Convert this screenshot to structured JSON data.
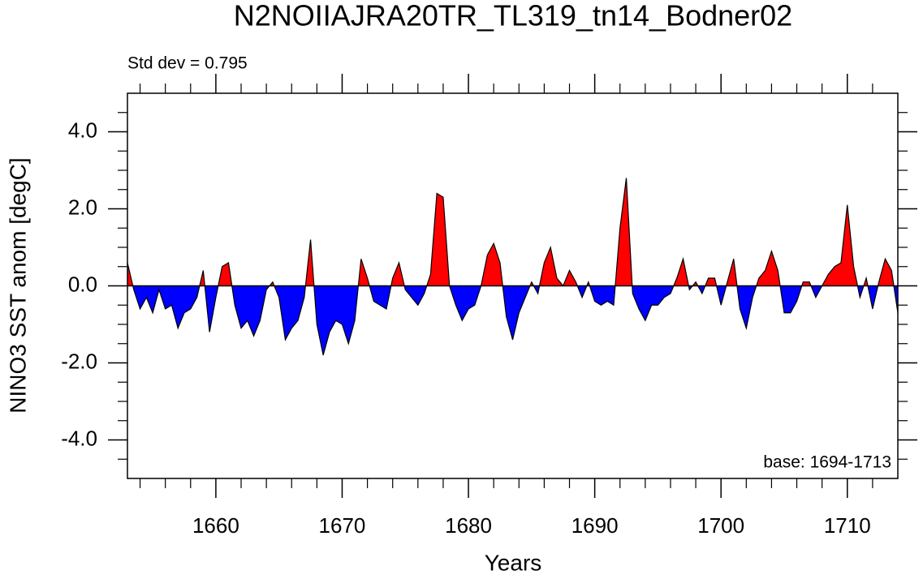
{
  "chart_data": {
    "type": "area",
    "title": "N2NOIIAJRA20TR_TL319_tn14_Bodner02",
    "annotation_left": "Std dev = 0.795",
    "annotation_right": "base: 1694-1713",
    "xlabel": "Years",
    "ylabel": "NINO3 SST anom [degC]",
    "above_color": "#ff0000",
    "below_color": "#0000ff",
    "line_color": "#000000",
    "xlim": [
      1653,
      1714
    ],
    "ylim": [
      -5,
      5
    ],
    "xticks": [
      1660,
      1670,
      1680,
      1690,
      1700,
      1710
    ],
    "xminorticks": [
      1654,
      1656,
      1658,
      1662,
      1664,
      1666,
      1668,
      1672,
      1674,
      1676,
      1678,
      1682,
      1684,
      1686,
      1688,
      1692,
      1694,
      1696,
      1698,
      1702,
      1704,
      1706,
      1708,
      1712
    ],
    "yticks": [
      {
        "value": -4,
        "label": "-4.0"
      },
      {
        "value": -2,
        "label": "-2.0"
      },
      {
        "value": 0,
        "label": "0.0"
      },
      {
        "value": 2,
        "label": "2.0"
      },
      {
        "value": 4,
        "label": "4.0"
      }
    ],
    "yminorticks": [
      -4.5,
      -3.5,
      -3,
      -2.5,
      -1.5,
      -1,
      -0.5,
      0.5,
      1,
      1.5,
      2.5,
      3,
      3.5,
      4.5
    ],
    "x": [
      1653,
      1653.5,
      1654,
      1654.5,
      1655,
      1655.5,
      1656,
      1656.5,
      1657,
      1657.5,
      1658,
      1658.5,
      1659,
      1659.5,
      1660,
      1660.5,
      1661,
      1661.5,
      1662,
      1662.5,
      1663,
      1663.5,
      1664,
      1664.5,
      1665,
      1665.5,
      1666,
      1666.5,
      1667,
      1667.5,
      1668,
      1668.5,
      1669,
      1669.5,
      1670,
      1670.5,
      1671,
      1671.5,
      1672,
      1672.5,
      1673,
      1673.5,
      1674,
      1674.5,
      1675,
      1675.5,
      1676,
      1676.5,
      1677,
      1677.5,
      1678,
      1678.5,
      1679,
      1679.5,
      1680,
      1680.5,
      1681,
      1681.5,
      1682,
      1682.5,
      1683,
      1683.5,
      1684,
      1684.5,
      1685,
      1685.5,
      1686,
      1686.5,
      1687,
      1687.5,
      1688,
      1688.5,
      1689,
      1689.5,
      1690,
      1690.5,
      1691,
      1691.5,
      1692,
      1692.5,
      1693,
      1693.5,
      1694,
      1694.5,
      1695,
      1695.5,
      1696,
      1696.5,
      1697,
      1697.5,
      1698,
      1698.5,
      1699,
      1699.5,
      1700,
      1700.5,
      1701,
      1701.5,
      1702,
      1702.5,
      1703,
      1703.5,
      1704,
      1704.5,
      1705,
      1705.5,
      1706,
      1706.5,
      1707,
      1707.5,
      1708,
      1708.5,
      1709,
      1709.5,
      1710,
      1710.5,
      1711,
      1711.5,
      1712,
      1712.5,
      1713,
      1713.5,
      1714
    ],
    "values": [
      0.6,
      -0.1,
      -0.6,
      -0.3,
      -0.7,
      -0.1,
      -0.6,
      -0.5,
      -1.1,
      -0.7,
      -0.6,
      -0.3,
      0.4,
      -1.2,
      -0.3,
      0.5,
      0.6,
      -0.5,
      -1.1,
      -0.9,
      -1.3,
      -0.9,
      -0.1,
      0.1,
      -0.3,
      -1.4,
      -1.1,
      -0.9,
      -0.3,
      1.2,
      -1.0,
      -1.8,
      -1.2,
      -0.9,
      -1.0,
      -1.5,
      -0.9,
      0.7,
      0.2,
      -0.4,
      -0.5,
      -0.6,
      0.2,
      0.6,
      -0.1,
      -0.3,
      -0.5,
      -0.2,
      0.3,
      2.4,
      2.3,
      0.0,
      -0.5,
      -0.9,
      -0.6,
      -0.5,
      0.0,
      0.8,
      1.1,
      0.6,
      -0.8,
      -1.4,
      -0.7,
      -0.3,
      0.1,
      -0.2,
      0.6,
      1.0,
      0.2,
      0.0,
      0.4,
      0.1,
      -0.3,
      0.1,
      -0.4,
      -0.5,
      -0.4,
      -0.5,
      1.5,
      2.8,
      -0.2,
      -0.6,
      -0.9,
      -0.5,
      -0.5,
      -0.3,
      -0.2,
      0.2,
      0.7,
      -0.1,
      0.1,
      -0.2,
      0.2,
      0.2,
      -0.5,
      0.1,
      0.7,
      -0.6,
      -1.1,
      -0.3,
      0.2,
      0.4,
      0.9,
      0.4,
      -0.7,
      -0.7,
      -0.4,
      0.1,
      0.1,
      -0.3,
      0.0,
      0.3,
      0.5,
      0.6,
      2.1,
      0.5,
      -0.3,
      0.2,
      -0.6,
      0.1,
      0.7,
      0.4,
      -0.7
    ]
  }
}
